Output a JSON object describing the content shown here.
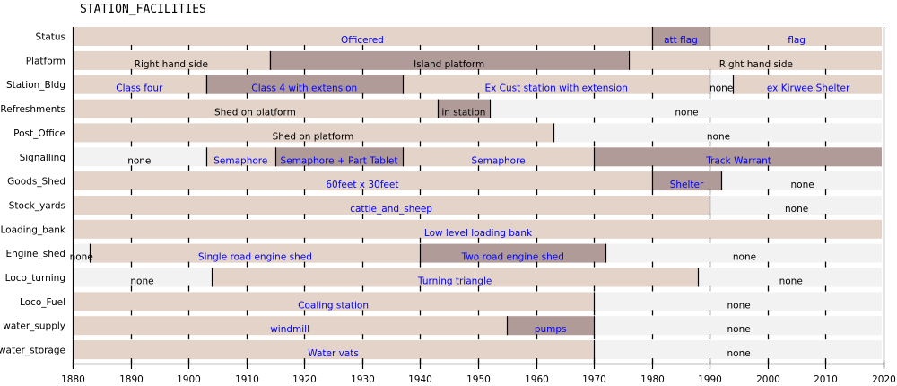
{
  "chart_data": {
    "type": "timeline",
    "title": "STATION_FACILITIES",
    "xlabel": "",
    "ylabel": "",
    "xlim": [
      1880,
      2020
    ],
    "xticks": [
      1880,
      1890,
      1900,
      1910,
      1920,
      1930,
      1940,
      1950,
      1960,
      1970,
      1980,
      1990,
      2000,
      2010,
      2020
    ],
    "grid": false,
    "colors": {
      "light": "#e3d3c9",
      "dark": "#b09b99",
      "none": "#f2f2f2",
      "text_blue": "#0000ff",
      "text_black": "#000000",
      "border": "#000000"
    },
    "rows": [
      {
        "name": "Status",
        "segments": [
          {
            "label": "Officered",
            "start": 1880,
            "end": 1980,
            "shade": "light",
            "text": "text_blue"
          },
          {
            "label": "att flag",
            "start": 1980,
            "end": 1990,
            "shade": "dark",
            "text": "text_blue"
          },
          {
            "label": "flag",
            "start": 1990,
            "end": 2020,
            "shade": "light",
            "text": "text_blue"
          }
        ]
      },
      {
        "name": "Platform",
        "segments": [
          {
            "label": "Right hand side",
            "start": 1880,
            "end": 1914,
            "shade": "light",
            "text": "text_black"
          },
          {
            "label": "Island platform",
            "start": 1914,
            "end": 1976,
            "shade": "dark",
            "text": "text_black"
          },
          {
            "label": "Right hand side",
            "start": 1976,
            "end": 2020,
            "shade": "light",
            "text": "text_black"
          }
        ]
      },
      {
        "name": "Station_Bldg",
        "segments": [
          {
            "label": "Class four",
            "start": 1880,
            "end": 1903,
            "shade": "light",
            "text": "text_blue"
          },
          {
            "label": "Class 4 with extension",
            "start": 1903,
            "end": 1937,
            "shade": "dark",
            "text": "text_blue"
          },
          {
            "label": "Ex Cust station with extension",
            "start": 1937,
            "end": 1990,
            "shade": "light",
            "text": "text_blue"
          },
          {
            "label": "none",
            "start": 1990,
            "end": 1994,
            "shade": "none",
            "text": "text_black"
          },
          {
            "label": "ex Kirwee Shelter",
            "start": 1994,
            "end": 2020,
            "shade": "light",
            "text": "text_blue"
          }
        ]
      },
      {
        "name": "Refreshments",
        "segments": [
          {
            "label": "Shed on platform",
            "start": 1880,
            "end": 1943,
            "shade": "light",
            "text": "text_black"
          },
          {
            "label": "in station",
            "start": 1943,
            "end": 1952,
            "shade": "dark",
            "text": "text_black"
          },
          {
            "label": "none",
            "start": 1952,
            "end": 2020,
            "shade": "none",
            "text": "text_black"
          }
        ]
      },
      {
        "name": "Post_Office",
        "segments": [
          {
            "label": "Shed on platform",
            "start": 1880,
            "end": 1963,
            "shade": "light",
            "text": "text_black"
          },
          {
            "label": "none",
            "start": 1963,
            "end": 2020,
            "shade": "none",
            "text": "text_black"
          }
        ]
      },
      {
        "name": "Signalling",
        "segments": [
          {
            "label": "none",
            "start": 1880,
            "end": 1903,
            "shade": "none",
            "text": "text_black"
          },
          {
            "label": "Semaphore",
            "start": 1903,
            "end": 1915,
            "shade": "light",
            "text": "text_blue"
          },
          {
            "label": "Semaphore + Part Tablet",
            "start": 1915,
            "end": 1937,
            "shade": "dark",
            "text": "text_blue"
          },
          {
            "label": "Semaphore",
            "start": 1937,
            "end": 1970,
            "shade": "light",
            "text": "text_blue"
          },
          {
            "label": "Track Warrant",
            "start": 1970,
            "end": 2020,
            "shade": "dark",
            "text": "text_blue"
          }
        ]
      },
      {
        "name": "Goods_Shed",
        "segments": [
          {
            "label": "60feet x 30feet",
            "start": 1880,
            "end": 1980,
            "shade": "light",
            "text": "text_blue"
          },
          {
            "label": "Shelter",
            "start": 1980,
            "end": 1992,
            "shade": "dark",
            "text": "text_blue"
          },
          {
            "label": "none",
            "start": 1992,
            "end": 2020,
            "shade": "none",
            "text": "text_black"
          }
        ]
      },
      {
        "name": "Stock_yards",
        "segments": [
          {
            "label": "cattle_and_sheep",
            "start": 1880,
            "end": 1990,
            "shade": "light",
            "text": "text_blue"
          },
          {
            "label": "none",
            "start": 1990,
            "end": 2020,
            "shade": "none",
            "text": "text_black"
          }
        ]
      },
      {
        "name": "Loading_bank",
        "segments": [
          {
            "label": "Low level loading bank",
            "start": 1880,
            "end": 2020,
            "shade": "light",
            "text": "text_blue"
          }
        ]
      },
      {
        "name": "Engine_shed",
        "segments": [
          {
            "label": "none",
            "start": 1880,
            "end": 1883,
            "shade": "none",
            "text": "text_black"
          },
          {
            "label": "Single road engine shed",
            "start": 1883,
            "end": 1940,
            "shade": "light",
            "text": "text_blue"
          },
          {
            "label": "Two road engine shed",
            "start": 1940,
            "end": 1972,
            "shade": "dark",
            "text": "text_blue"
          },
          {
            "label": "none",
            "start": 1972,
            "end": 2020,
            "shade": "none",
            "text": "text_black"
          }
        ]
      },
      {
        "name": "Loco_turning",
        "segments": [
          {
            "label": "none",
            "start": 1880,
            "end": 1904,
            "shade": "none",
            "text": "text_black"
          },
          {
            "label": "Turning triangle",
            "start": 1904,
            "end": 1988,
            "shade": "light",
            "text": "text_blue"
          },
          {
            "label": "none",
            "start": 1988,
            "end": 2020,
            "shade": "none",
            "text": "text_black"
          }
        ]
      },
      {
        "name": "Loco_Fuel",
        "segments": [
          {
            "label": "Coaling station",
            "start": 1880,
            "end": 1970,
            "shade": "light",
            "text": "text_blue"
          },
          {
            "label": "none",
            "start": 1970,
            "end": 2020,
            "shade": "none",
            "text": "text_black"
          }
        ]
      },
      {
        "name": "water_supply",
        "segments": [
          {
            "label": "windmill",
            "start": 1880,
            "end": 1955,
            "shade": "light",
            "text": "text_blue"
          },
          {
            "label": "pumps",
            "start": 1955,
            "end": 1970,
            "shade": "dark",
            "text": "text_blue"
          },
          {
            "label": "none",
            "start": 1970,
            "end": 2020,
            "shade": "none",
            "text": "text_black"
          }
        ]
      },
      {
        "name": "water_storage",
        "segments": [
          {
            "label": "Water vats",
            "start": 1880,
            "end": 1970,
            "shade": "light",
            "text": "text_blue"
          },
          {
            "label": "none",
            "start": 1970,
            "end": 2020,
            "shade": "none",
            "text": "text_black"
          }
        ]
      }
    ]
  }
}
